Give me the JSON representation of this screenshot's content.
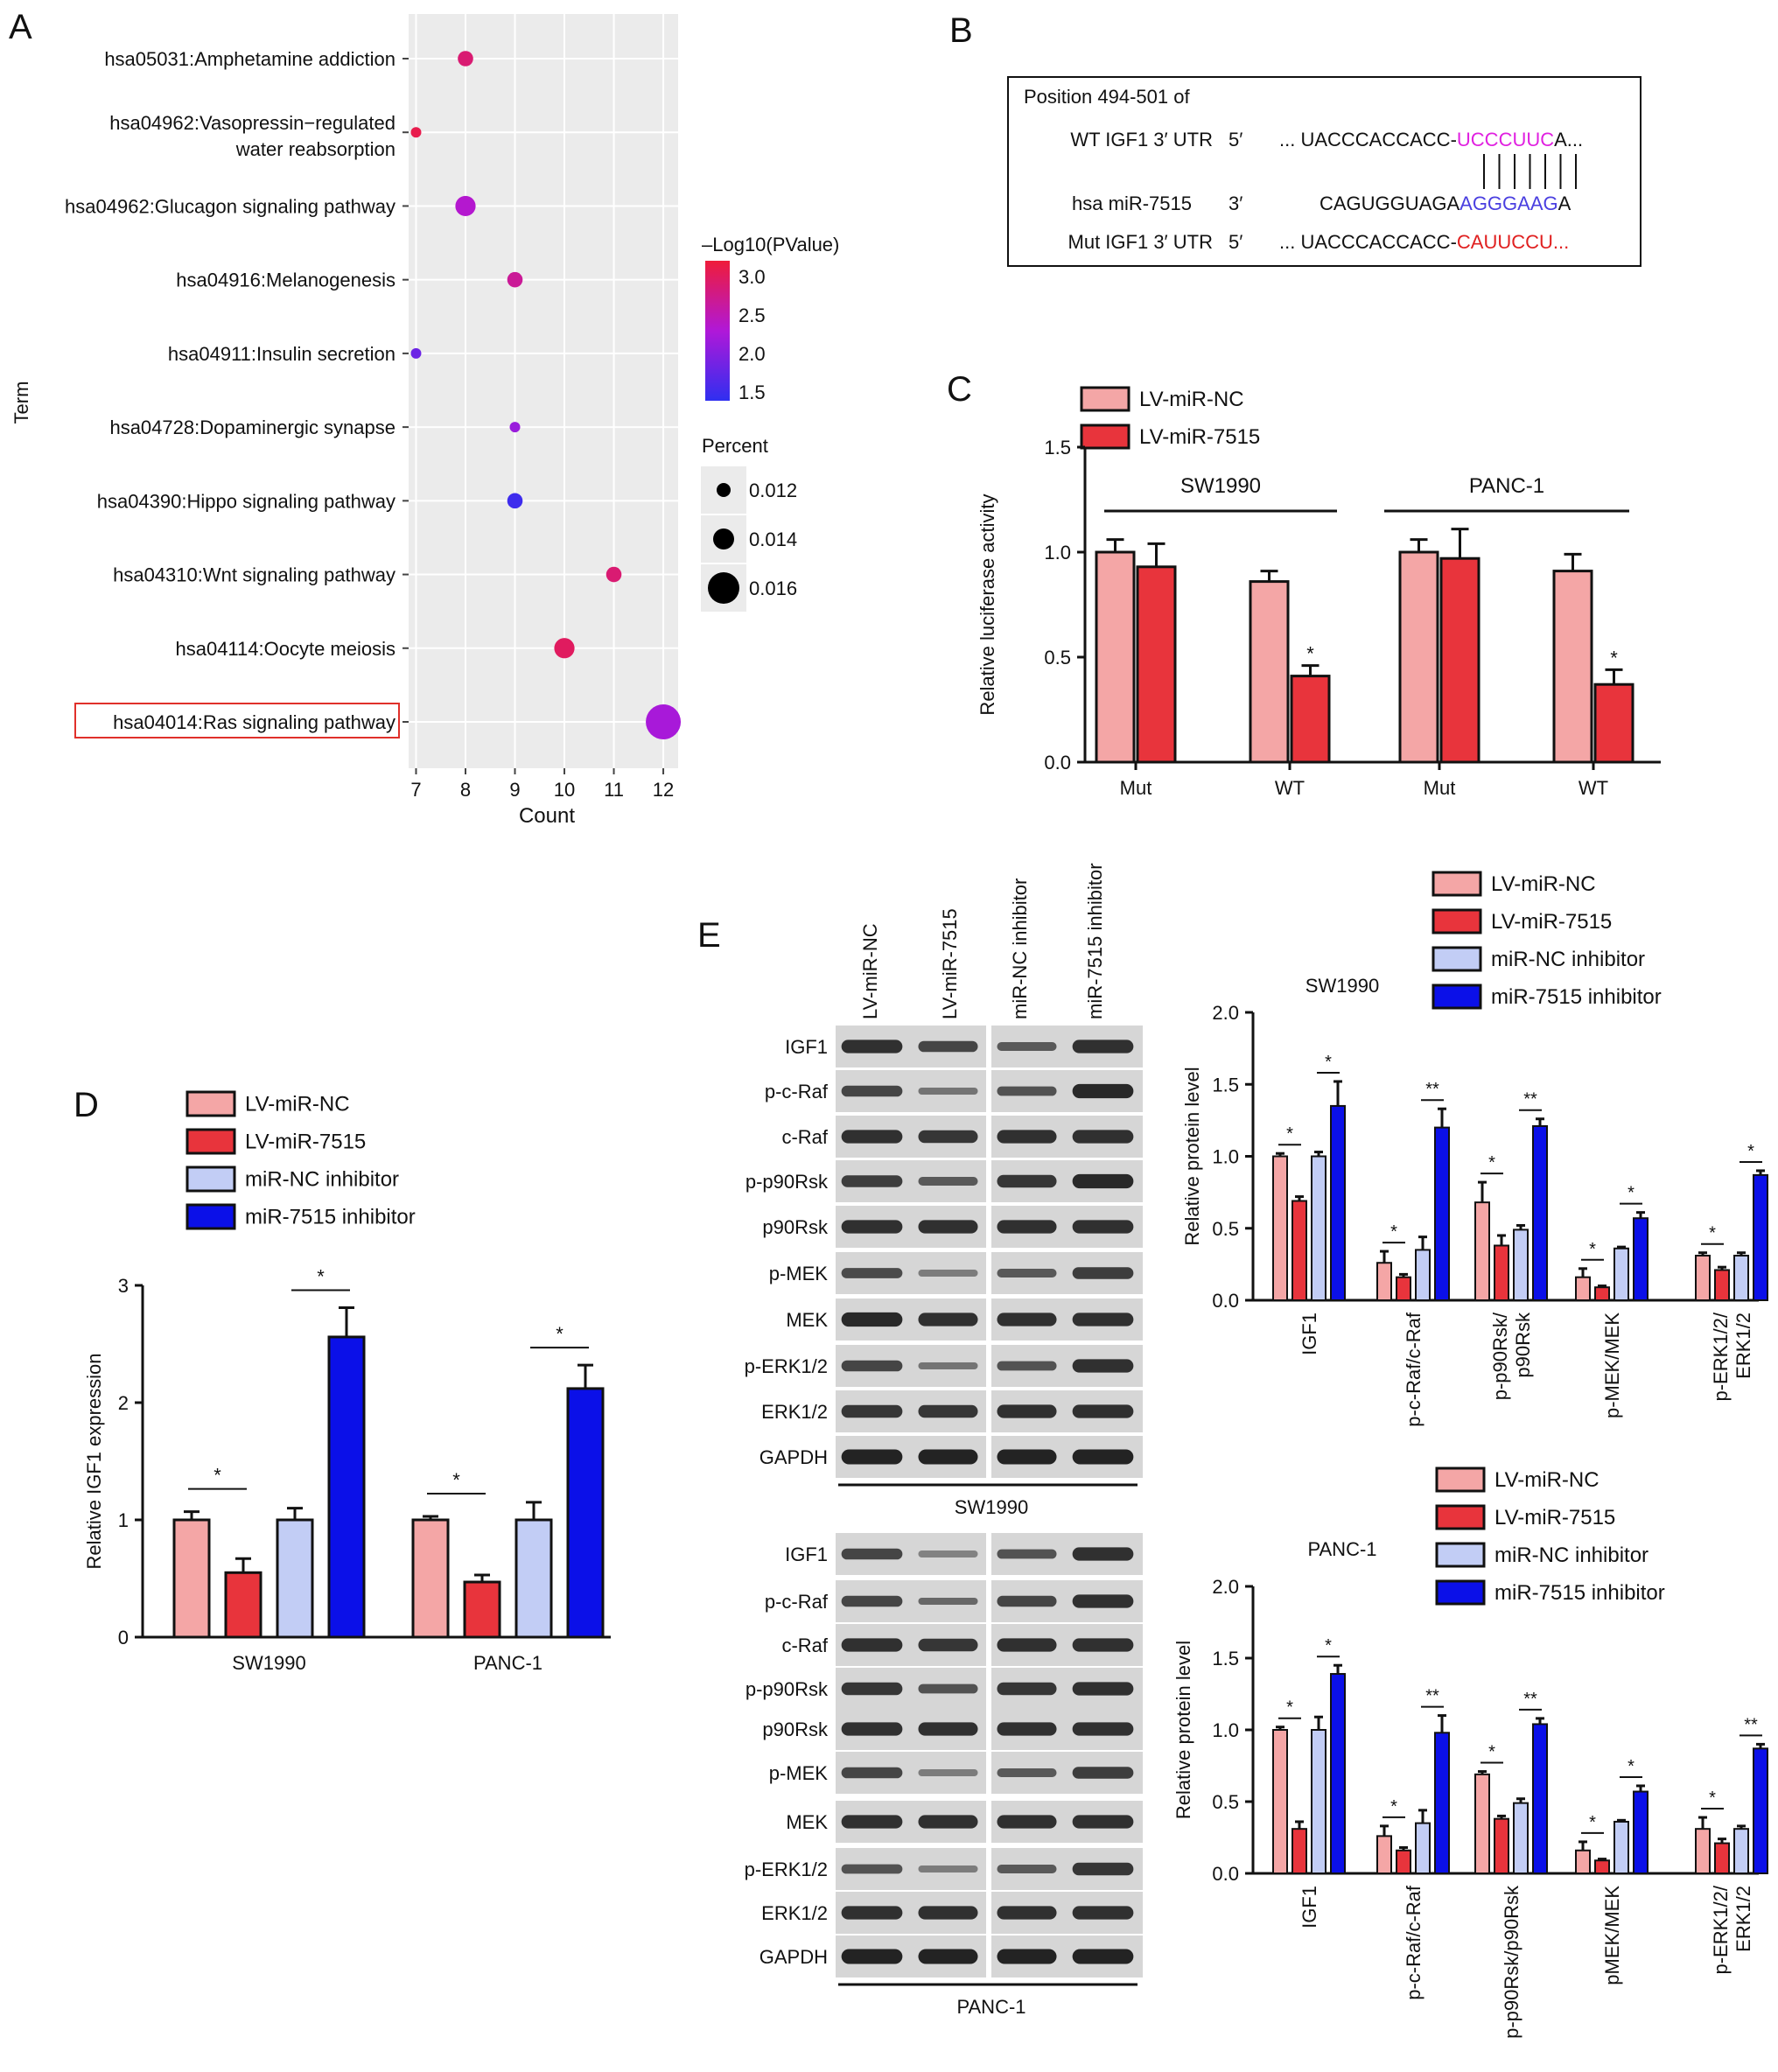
{
  "panels": {
    "a": "A",
    "b": "B",
    "c": "C",
    "d": "D",
    "e": "E"
  },
  "colors": {
    "lv_nc": "#f4a6a6",
    "lv_7515": "#e8343c",
    "nc_inhib": "#c2cdf5",
    "inhib_7515": "#0b10e8",
    "bar_edge": "#111111",
    "dot_grey_bg": "#ebebeb",
    "seed_magenta": "#e020e0",
    "seed_blue": "#4a3fe0",
    "mut_red": "#e02020",
    "highlight_box": "#e0302a"
  },
  "legend4": [
    "LV-miR-NC",
    "LV-miR-7515",
    "miR-NC inhibitor",
    "miR-7515 inhibitor"
  ],
  "panel_b": {
    "header": "Position 494-501 of",
    "rows": [
      {
        "label": "WT IGF1 3′ UTR",
        "end": "5′",
        "seq_pre": "... UACCCACCACC-",
        "seq_hl": "UCCCUUC",
        "seq_post": "A..."
      },
      {
        "label": "hsa miR-7515",
        "end": "3′",
        "seq_pre": "CAGUGGUAGA",
        "seq_hl": "AGGGAAG",
        "seq_post": "A"
      },
      {
        "label": "Mut IGF1 3′ UTR",
        "end": "5′",
        "seq_pre": "... UACCCACCACC-",
        "seq_hl": "CAUUCCU...",
        "seq_post": ""
      }
    ]
  },
  "western": {
    "lanes": [
      "LV-miR-NC",
      "LV-miR-7515",
      "miR-NC inhibitor",
      "miR-7515 inhibitor"
    ],
    "bands": [
      "IGF1",
      "p-c-Raf",
      "c-Raf",
      "p-p90Rsk",
      "p90Rsk",
      "p-MEK",
      "MEK",
      "p-ERK1/2",
      "ERK1/2",
      "GAPDH"
    ],
    "blots": [
      "SW1990",
      "PANC-1"
    ]
  },
  "chart_data": [
    {
      "id": "A",
      "type": "scatter",
      "ylabel": "Term",
      "xlabel": "Count",
      "xlim": [
        6.85,
        12.3
      ],
      "xticks": [
        7,
        8,
        9,
        10,
        11,
        12
      ],
      "grid": true,
      "highlight_term": "hsa04014:Ras signaling pathway",
      "color_legend": {
        "title": "–Log10(PValue)",
        "ticks": [
          "3.0",
          "2.5",
          "2.0",
          "1.5"
        ],
        "range": [
          1.4,
          3.1
        ]
      },
      "size_legend": {
        "title": "Percent",
        "values": [
          "0.012",
          "0.014",
          "0.016"
        ]
      },
      "points": [
        {
          "term": "hsa05031:Amphetamine addiction",
          "count": 8,
          "neglog10p": 2.8,
          "percent": 0.012
        },
        {
          "term": "hsa04962:Vasopressin−regulated\nwater reabsorption",
          "count": 7,
          "neglog10p": 3.0,
          "percent": 0.011
        },
        {
          "term": "hsa04962:Glucagon signaling pathway",
          "count": 8,
          "neglog10p": 2.3,
          "percent": 0.013
        },
        {
          "term": "hsa04916:Melanogenesis",
          "count": 9,
          "neglog10p": 2.6,
          "percent": 0.012
        },
        {
          "term": "hsa04911:Insulin secretion",
          "count": 7,
          "neglog10p": 1.8,
          "percent": 0.011
        },
        {
          "term": "hsa04728:Dopaminergic synapse",
          "count": 9,
          "neglog10p": 2.1,
          "percent": 0.011
        },
        {
          "term": "hsa04390:Hippo signaling pathway",
          "count": 9,
          "neglog10p": 1.5,
          "percent": 0.012
        },
        {
          "term": "hsa04310:Wnt signaling pathway",
          "count": 11,
          "neglog10p": 2.8,
          "percent": 0.012
        },
        {
          "term": "hsa04114:Oocyte meiosis",
          "count": 10,
          "neglog10p": 2.9,
          "percent": 0.013
        },
        {
          "term": "hsa04014:Ras signaling pathway",
          "count": 12,
          "neglog10p": 2.2,
          "percent": 0.016
        }
      ]
    },
    {
      "id": "C",
      "type": "bar",
      "ylabel": "Relative luciferase activity",
      "ylim": [
        0,
        1.5
      ],
      "yticks": [
        "0.0",
        "0.5",
        "1.0",
        "1.5"
      ],
      "legend": [
        "LV-miR-NC",
        "LV-miR-7515"
      ],
      "groups": [
        "SW1990",
        "PANC-1"
      ],
      "categories": [
        "Mut",
        "WT",
        "Mut",
        "WT"
      ],
      "series": [
        {
          "name": "LV-miR-NC",
          "values": [
            1.0,
            0.86,
            1.0,
            0.91
          ],
          "errors": [
            0.06,
            0.05,
            0.06,
            0.08
          ]
        },
        {
          "name": "LV-miR-7515",
          "values": [
            0.93,
            0.41,
            0.97,
            0.37
          ],
          "errors": [
            0.11,
            0.05,
            0.14,
            0.07
          ]
        }
      ],
      "significance": [
        "",
        "*",
        "",
        "*"
      ]
    },
    {
      "id": "D",
      "type": "bar",
      "ylabel": "Relative IGF1 expression",
      "ylim": [
        0,
        3
      ],
      "yticks": [
        "0",
        "1",
        "2",
        "3"
      ],
      "categories": [
        "SW1990",
        "PANC-1"
      ],
      "series": [
        {
          "name": "LV-miR-NC",
          "values": [
            1.0,
            1.0
          ],
          "errors": [
            0.07,
            0.03
          ]
        },
        {
          "name": "LV-miR-7515",
          "values": [
            0.55,
            0.47
          ],
          "errors": [
            0.12,
            0.06
          ]
        },
        {
          "name": "miR-NC inhibitor",
          "values": [
            1.0,
            1.0
          ],
          "errors": [
            0.1,
            0.15
          ]
        },
        {
          "name": "miR-7515 inhibitor",
          "values": [
            2.56,
            2.12
          ],
          "errors": [
            0.25,
            0.2
          ]
        }
      ],
      "significance": [
        "*",
        "*"
      ]
    },
    {
      "id": "E-SW1990",
      "type": "bar",
      "title": "SW1990",
      "ylabel": "Relative protein level",
      "ylim": [
        0,
        2
      ],
      "yticks": [
        "0.0",
        "0.5",
        "1.0",
        "1.5",
        "2.0"
      ],
      "categories": [
        "IGF1",
        "p-c-Raf/c-Raf",
        "p-p90Rsk/\np90Rsk",
        "p-MEK/MEK",
        "p-ERK1/2/\nERK1/2"
      ],
      "series": [
        {
          "name": "LV-miR-NC",
          "values": [
            1.0,
            0.26,
            0.68,
            0.16,
            0.31
          ],
          "errors": [
            0.02,
            0.08,
            0.14,
            0.06,
            0.02
          ]
        },
        {
          "name": "LV-miR-7515",
          "values": [
            0.69,
            0.16,
            0.38,
            0.09,
            0.21
          ],
          "errors": [
            0.03,
            0.02,
            0.07,
            0.01,
            0.02
          ]
        },
        {
          "name": "miR-NC inhibitor",
          "values": [
            1.0,
            0.35,
            0.49,
            0.36,
            0.31
          ],
          "errors": [
            0.03,
            0.09,
            0.03,
            0.01,
            0.02
          ]
        },
        {
          "name": "miR-7515 inhibitor",
          "values": [
            1.35,
            1.2,
            1.21,
            0.57,
            0.87
          ],
          "errors": [
            0.17,
            0.13,
            0.05,
            0.04,
            0.03
          ]
        }
      ],
      "significance_nc": [
        "*",
        "*",
        "*",
        "*",
        "*"
      ],
      "significance_inhib": [
        "*",
        "**",
        "**",
        "*",
        "*"
      ]
    },
    {
      "id": "E-PANC-1",
      "type": "bar",
      "title": "PANC-1",
      "ylabel": "Relative protein level",
      "ylim": [
        0,
        2
      ],
      "yticks": [
        "0.0",
        "0.5",
        "1.0",
        "1.5",
        "2.0"
      ],
      "categories": [
        "IGF1",
        "p-c-Raf/c-Raf",
        "p-p90Rsk/p90Rsk",
        "pMEK/MEK",
        "p-ERK1/2/\nERK1/2"
      ],
      "series": [
        {
          "name": "LV-miR-NC",
          "values": [
            1.0,
            0.26,
            0.69,
            0.16,
            0.31
          ],
          "errors": [
            0.02,
            0.07,
            0.02,
            0.06,
            0.08
          ]
        },
        {
          "name": "LV-miR-7515",
          "values": [
            0.31,
            0.16,
            0.38,
            0.09,
            0.21
          ],
          "errors": [
            0.05,
            0.02,
            0.02,
            0.01,
            0.03
          ]
        },
        {
          "name": "miR-NC inhibitor",
          "values": [
            1.0,
            0.35,
            0.49,
            0.36,
            0.31
          ],
          "errors": [
            0.09,
            0.09,
            0.03,
            0.01,
            0.02
          ]
        },
        {
          "name": "miR-7515 inhibitor",
          "values": [
            1.39,
            0.98,
            1.04,
            0.57,
            0.87
          ],
          "errors": [
            0.06,
            0.12,
            0.04,
            0.04,
            0.03
          ]
        }
      ],
      "significance_nc": [
        "*",
        "*",
        "*",
        "*",
        "*"
      ],
      "significance_inhib": [
        "*",
        "**",
        "**",
        "*",
        "**"
      ]
    }
  ]
}
